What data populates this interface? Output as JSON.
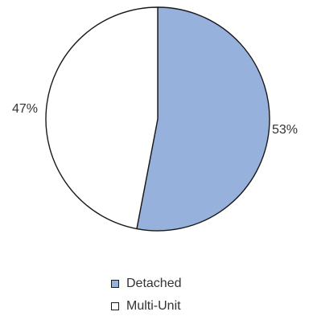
{
  "chart_data": {
    "type": "pie",
    "categories": [
      "Detached",
      "Multi-Unit"
    ],
    "values": [
      53,
      47
    ],
    "labels": [
      "53%",
      "47%"
    ],
    "colors": [
      "#95b1dc",
      "#ffffff"
    ],
    "title": "",
    "legend_position": "bottom"
  },
  "legend": {
    "items": [
      {
        "label": "Detached",
        "color": "#95b1dc"
      },
      {
        "label": "Multi-Unit",
        "color": "#ffffff"
      }
    ]
  }
}
